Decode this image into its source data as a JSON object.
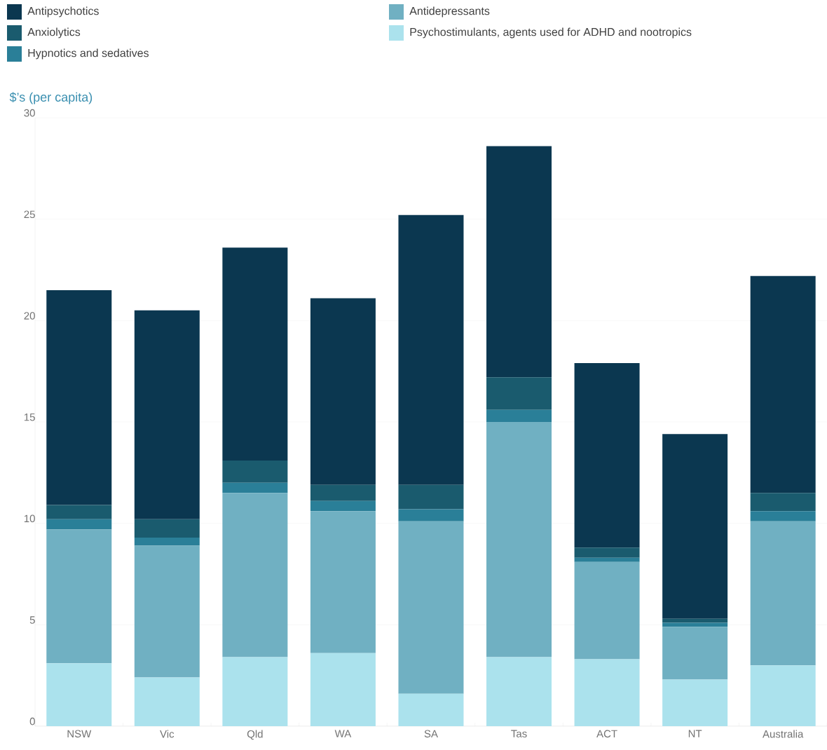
{
  "chart_data": {
    "type": "bar",
    "stacked": true,
    "ylabel": "$’s (per capita)",
    "categories": [
      "NSW",
      "Vic",
      "Qld",
      "WA",
      "SA",
      "Tas",
      "ACT",
      "NT",
      "Australia"
    ],
    "series": [
      {
        "name": "Psychostimulants, agents used for ADHD and nootropics",
        "color": "#abe2ed",
        "values": [
          3.1,
          2.4,
          3.4,
          3.6,
          1.6,
          3.4,
          3.3,
          2.3,
          3.0
        ]
      },
      {
        "name": "Antidepressants",
        "color": "#70b0c2",
        "values": [
          6.6,
          6.5,
          8.1,
          7.0,
          8.5,
          11.6,
          4.8,
          2.6,
          7.1
        ]
      },
      {
        "name": "Hypnotics and sedatives",
        "color": "#2a7f98",
        "values": [
          0.5,
          0.4,
          0.5,
          0.5,
          0.6,
          0.6,
          0.2,
          0.2,
          0.5
        ]
      },
      {
        "name": "Anxiolytics",
        "color": "#1a5b6e",
        "values": [
          0.7,
          0.9,
          1.1,
          0.8,
          1.2,
          1.6,
          0.5,
          0.2,
          0.9
        ]
      },
      {
        "name": "Antipsychotics",
        "color": "#0b3750",
        "values": [
          10.6,
          10.3,
          10.5,
          9.2,
          13.3,
          11.4,
          9.1,
          9.1,
          10.7
        ]
      }
    ],
    "ylim": [
      0,
      30
    ],
    "yticks": [
      0,
      5,
      10,
      15,
      20,
      25,
      30
    ],
    "grid": "y",
    "legend": "top"
  }
}
